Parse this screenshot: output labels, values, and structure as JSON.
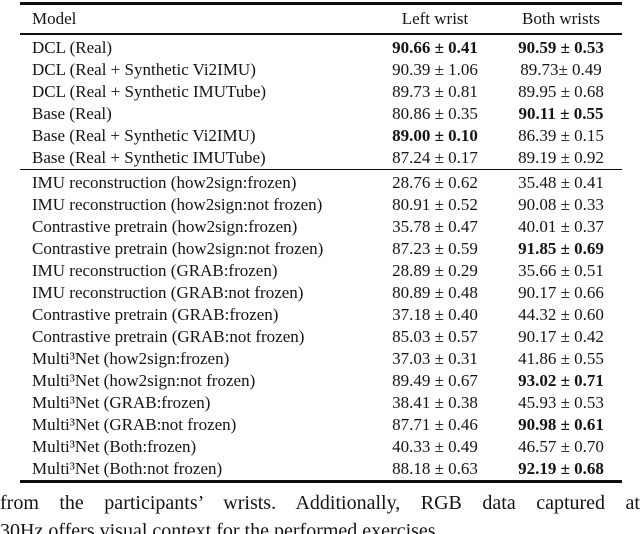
{
  "table": {
    "columns": [
      "Model",
      "Left wrist",
      "Both wrists"
    ],
    "groups": [
      {
        "name": "baseline-models",
        "rule_above": false,
        "rows": [
          {
            "model": "DCL (Real)",
            "left": "90.66 ± 0.41",
            "left_bold": true,
            "both": "90.59 ± 0.53",
            "both_bold": true
          },
          {
            "model": "DCL (Real + Synthetic Vi2IMU)",
            "left": "90.39 ± 1.06",
            "left_bold": false,
            "both": "89.73± 0.49",
            "both_bold": false
          },
          {
            "model": "DCL (Real + Synthetic IMUTube)",
            "left": "89.73 ± 0.81",
            "left_bold": false,
            "both": "89.95 ± 0.68",
            "both_bold": false
          },
          {
            "model": "Base (Real)",
            "left": "80.86 ± 0.35",
            "left_bold": false,
            "both": "90.11 ± 0.55",
            "both_bold": true
          },
          {
            "model": "Base (Real + Synthetic Vi2IMU)",
            "left": "89.00 ± 0.10",
            "left_bold": true,
            "both": "86.39 ± 0.15",
            "both_bold": false
          },
          {
            "model": "Base (Real + Synthetic IMUTube)",
            "left": "87.24 ± 0.17",
            "left_bold": false,
            "both": "89.19 ± 0.92",
            "both_bold": false
          }
        ]
      },
      {
        "name": "pretrain-models",
        "rule_above": true,
        "rows": [
          {
            "model": "IMU reconstruction (how2sign:frozen)",
            "left": "28.76 ± 0.62",
            "left_bold": false,
            "both": "35.48 ± 0.41",
            "both_bold": false
          },
          {
            "model": "IMU reconstruction (how2sign:not frozen)",
            "left": "80.91 ± 0.52",
            "left_bold": false,
            "both": "90.08 ± 0.33",
            "both_bold": false
          },
          {
            "model": "Contrastive pretrain (how2sign:frozen)",
            "left": "35.78 ± 0.47",
            "left_bold": false,
            "both": "40.01 ± 0.37",
            "both_bold": false
          },
          {
            "model": "Contrastive pretrain (how2sign:not frozen)",
            "left": "87.23 ± 0.59",
            "left_bold": false,
            "both": "91.85 ± 0.69",
            "both_bold": true
          },
          {
            "model": "IMU reconstruction (GRAB:frozen)",
            "left": "28.89 ± 0.29",
            "left_bold": false,
            "both": "35.66 ± 0.51",
            "both_bold": false
          },
          {
            "model": "IMU reconstruction (GRAB:not frozen)",
            "left": "80.89 ± 0.48",
            "left_bold": false,
            "both": "90.17 ± 0.66",
            "both_bold": false
          },
          {
            "model": "Contrastive pretrain (GRAB:frozen)",
            "left": "37.18 ± 0.40",
            "left_bold": false,
            "both": "44.32 ± 0.60",
            "both_bold": false
          },
          {
            "model": "Contrastive pretrain (GRAB:not frozen)",
            "left": "85.03 ± 0.57",
            "left_bold": false,
            "both": "90.17 ± 0.42",
            "both_bold": false
          },
          {
            "model": "Multi³Net (how2sign:frozen)",
            "left": "37.03 ± 0.31",
            "left_bold": false,
            "both": "41.86 ± 0.55",
            "both_bold": false
          },
          {
            "model": "Multi³Net (how2sign:not frozen)",
            "left": "89.49 ± 0.67",
            "left_bold": false,
            "both": "93.02 ± 0.71",
            "both_bold": true
          },
          {
            "model": "Multi³Net (GRAB:frozen)",
            "left": "38.41 ± 0.38",
            "left_bold": false,
            "both": "45.93 ± 0.53",
            "both_bold": false
          },
          {
            "model": "Multi³Net (GRAB:not frozen)",
            "left": "87.71 ± 0.46",
            "left_bold": false,
            "both": "90.98 ± 0.61",
            "both_bold": true
          },
          {
            "model": "Multi³Net (Both:frozen)",
            "left": "40.33 ± 0.49",
            "left_bold": false,
            "both": "46.57 ± 0.70",
            "both_bold": false
          },
          {
            "model": "Multi³Net (Both:not frozen)",
            "left": "88.18 ± 0.63",
            "left_bold": false,
            "both": "92.19 ± 0.68",
            "both_bold": true
          }
        ]
      }
    ]
  },
  "caption": {
    "line1": "from the participants’ wrists. Additionally, RGB data captured at",
    "line2": "30Hz offers visual context for the performed exercises."
  }
}
